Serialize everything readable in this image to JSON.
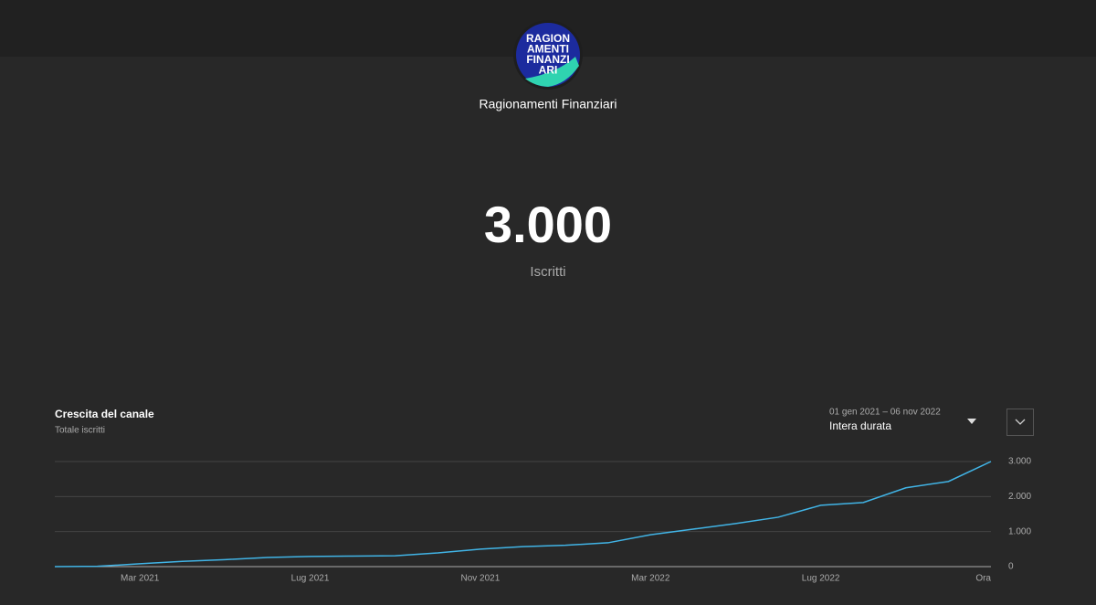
{
  "header": {
    "avatar_lines": [
      "RAGION",
      "AMENTI",
      "FINANZI",
      "ARI"
    ],
    "channel_name": "Ragionamenti Finanziari"
  },
  "stat": {
    "value": "3.000",
    "label": "Iscritti"
  },
  "panel": {
    "title": "Crescita del canale",
    "subtitle": "Totale iscritti",
    "date_range": "01 gen 2021 – 06 nov 2022",
    "period": "Intera durata"
  },
  "chart_data": {
    "type": "line",
    "x": [
      "2021-01",
      "2021-02",
      "2021-03",
      "2021-04",
      "2021-05",
      "2021-06",
      "2021-07",
      "2021-08",
      "2021-09",
      "2021-10",
      "2021-11",
      "2021-12",
      "2022-01",
      "2022-02",
      "2022-03",
      "2022-04",
      "2022-05",
      "2022-06",
      "2022-07",
      "2022-08",
      "2022-09",
      "2022-10",
      "2022-11"
    ],
    "series": [
      {
        "name": "Totale iscritti",
        "color": "#41b4e6",
        "values": [
          0,
          10,
          80,
          150,
          200,
          260,
          290,
          300,
          310,
          390,
          500,
          570,
          610,
          680,
          910,
          1070,
          1230,
          1410,
          1750,
          1830,
          2250,
          2430,
          3000
        ]
      }
    ],
    "xlim": [
      "2021-01",
      "2022-11"
    ],
    "xticks": [
      {
        "value": "2021-03",
        "label": "Mar 2021"
      },
      {
        "value": "2021-07",
        "label": "Lug 2021"
      },
      {
        "value": "2021-11",
        "label": "Nov 2021"
      },
      {
        "value": "2022-03",
        "label": "Mar 2022"
      },
      {
        "value": "2022-07",
        "label": "Lug 2022"
      },
      {
        "value": "2022-11",
        "label": "Ora"
      }
    ],
    "ylim": [
      0,
      3000
    ],
    "yticks": [
      0,
      {
        "value": 1000,
        "label": "1.000"
      },
      {
        "value": 2000,
        "label": "2.000"
      },
      {
        "value": 3000,
        "label": "3.000"
      }
    ],
    "grid": true
  }
}
